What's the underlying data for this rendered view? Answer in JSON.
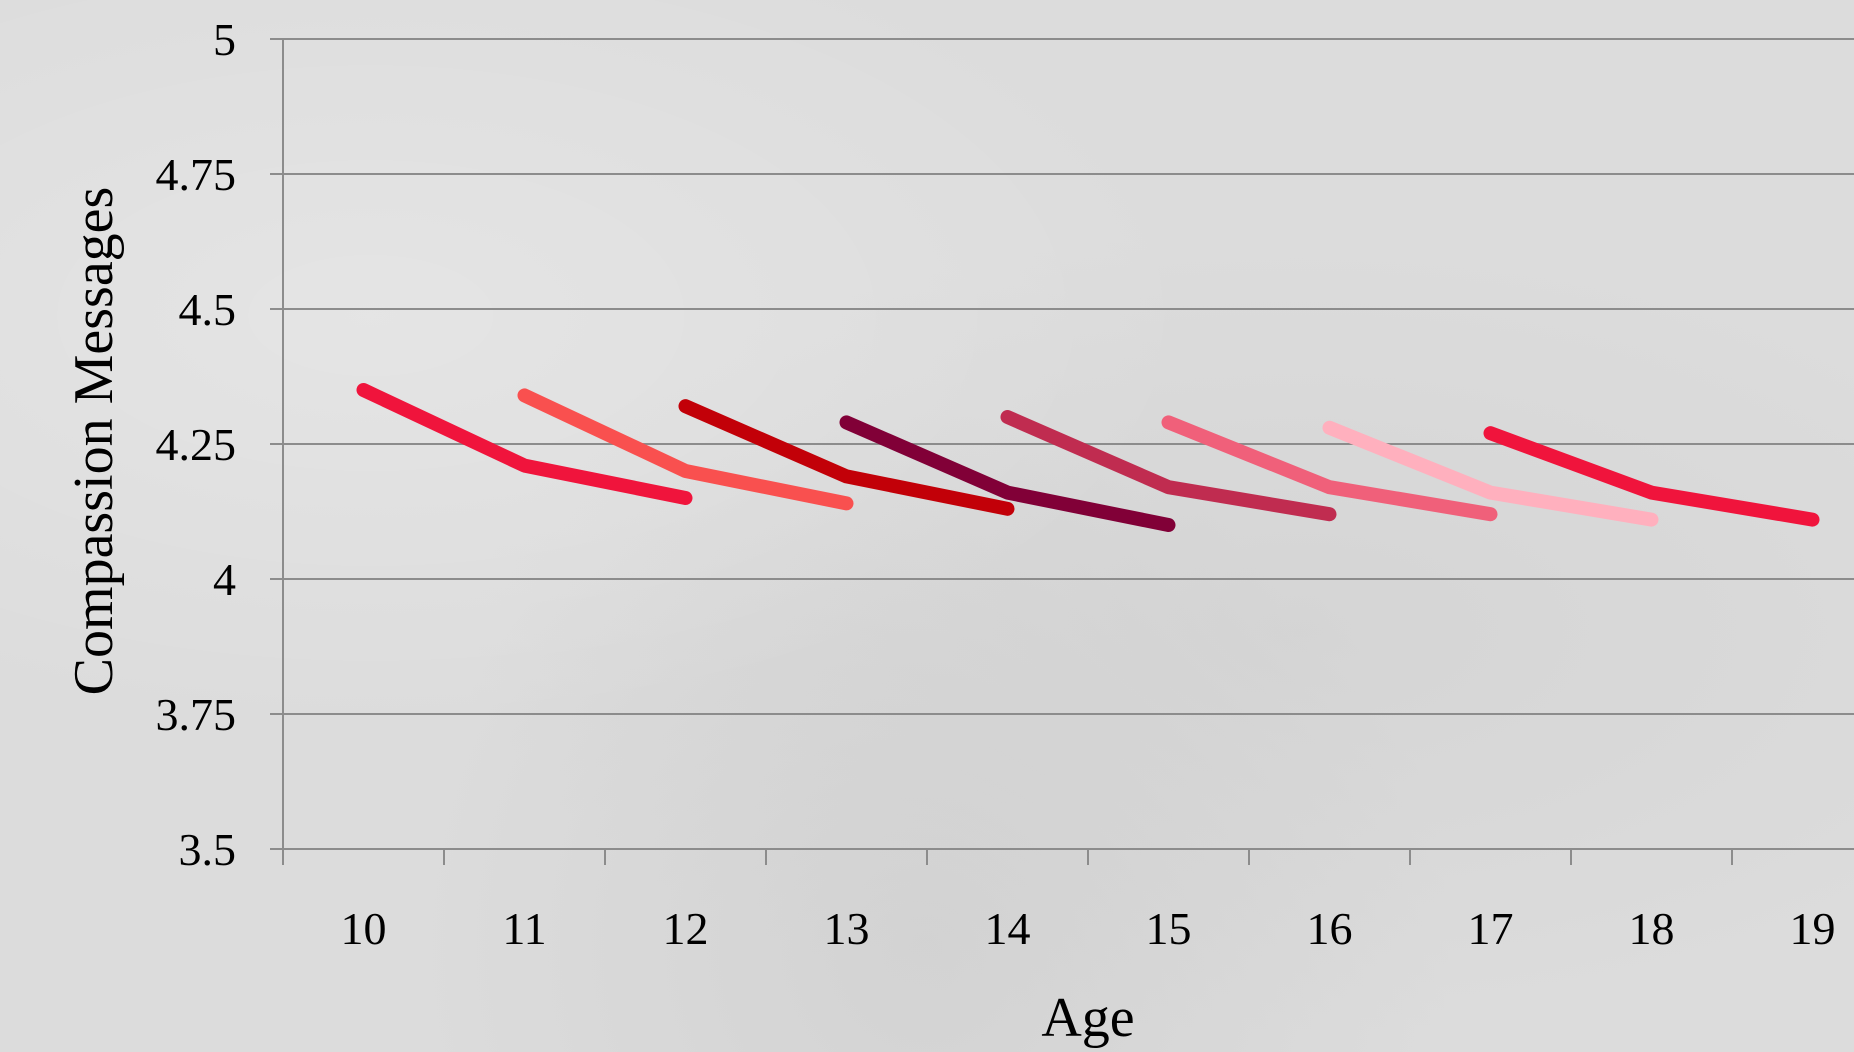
{
  "chart_data": {
    "type": "line",
    "title": "",
    "xlabel": "Age",
    "ylabel": "Compassion Messages",
    "ylim": [
      3.5,
      5
    ],
    "yticks": [
      3.5,
      3.75,
      4,
      4.25,
      4.5,
      4.75,
      5
    ],
    "ytick_labels": [
      "3.5",
      "3.75",
      "4",
      "4.25",
      "4.5",
      "4.75",
      "5"
    ],
    "xlim": [
      9.5,
      19.5
    ],
    "xticks": [
      10,
      11,
      12,
      13,
      14,
      15,
      16,
      17,
      18,
      19
    ],
    "xtick_labels": [
      "10",
      "11",
      "12",
      "13",
      "14",
      "15",
      "16",
      "17",
      "18",
      "19"
    ],
    "grid": true,
    "series": [
      {
        "color": "#f0143c",
        "x": [
          10,
          11,
          12
        ],
        "y": [
          4.35,
          4.21,
          4.15
        ]
      },
      {
        "color": "#f9504f",
        "x": [
          11,
          12,
          13
        ],
        "y": [
          4.34,
          4.2,
          4.14
        ]
      },
      {
        "color": "#c20008",
        "x": [
          12,
          13,
          14
        ],
        "y": [
          4.32,
          4.19,
          4.13
        ]
      },
      {
        "color": "#810037",
        "x": [
          13,
          14,
          15
        ],
        "y": [
          4.29,
          4.16,
          4.1
        ]
      },
      {
        "color": "#c02c50",
        "x": [
          14,
          15,
          16
        ],
        "y": [
          4.3,
          4.17,
          4.12
        ]
      },
      {
        "color": "#f0607a",
        "x": [
          15,
          16,
          17
        ],
        "y": [
          4.29,
          4.17,
          4.12
        ]
      },
      {
        "color": "#ffb0be",
        "x": [
          16,
          17,
          18
        ],
        "y": [
          4.28,
          4.16,
          4.11
        ]
      },
      {
        "color": "#f0143c",
        "x": [
          17,
          18,
          19
        ],
        "y": [
          4.27,
          4.16,
          4.11
        ]
      }
    ],
    "colors": {
      "gridline": "#8c8c8c",
      "axis": "#8c8c8c"
    }
  }
}
